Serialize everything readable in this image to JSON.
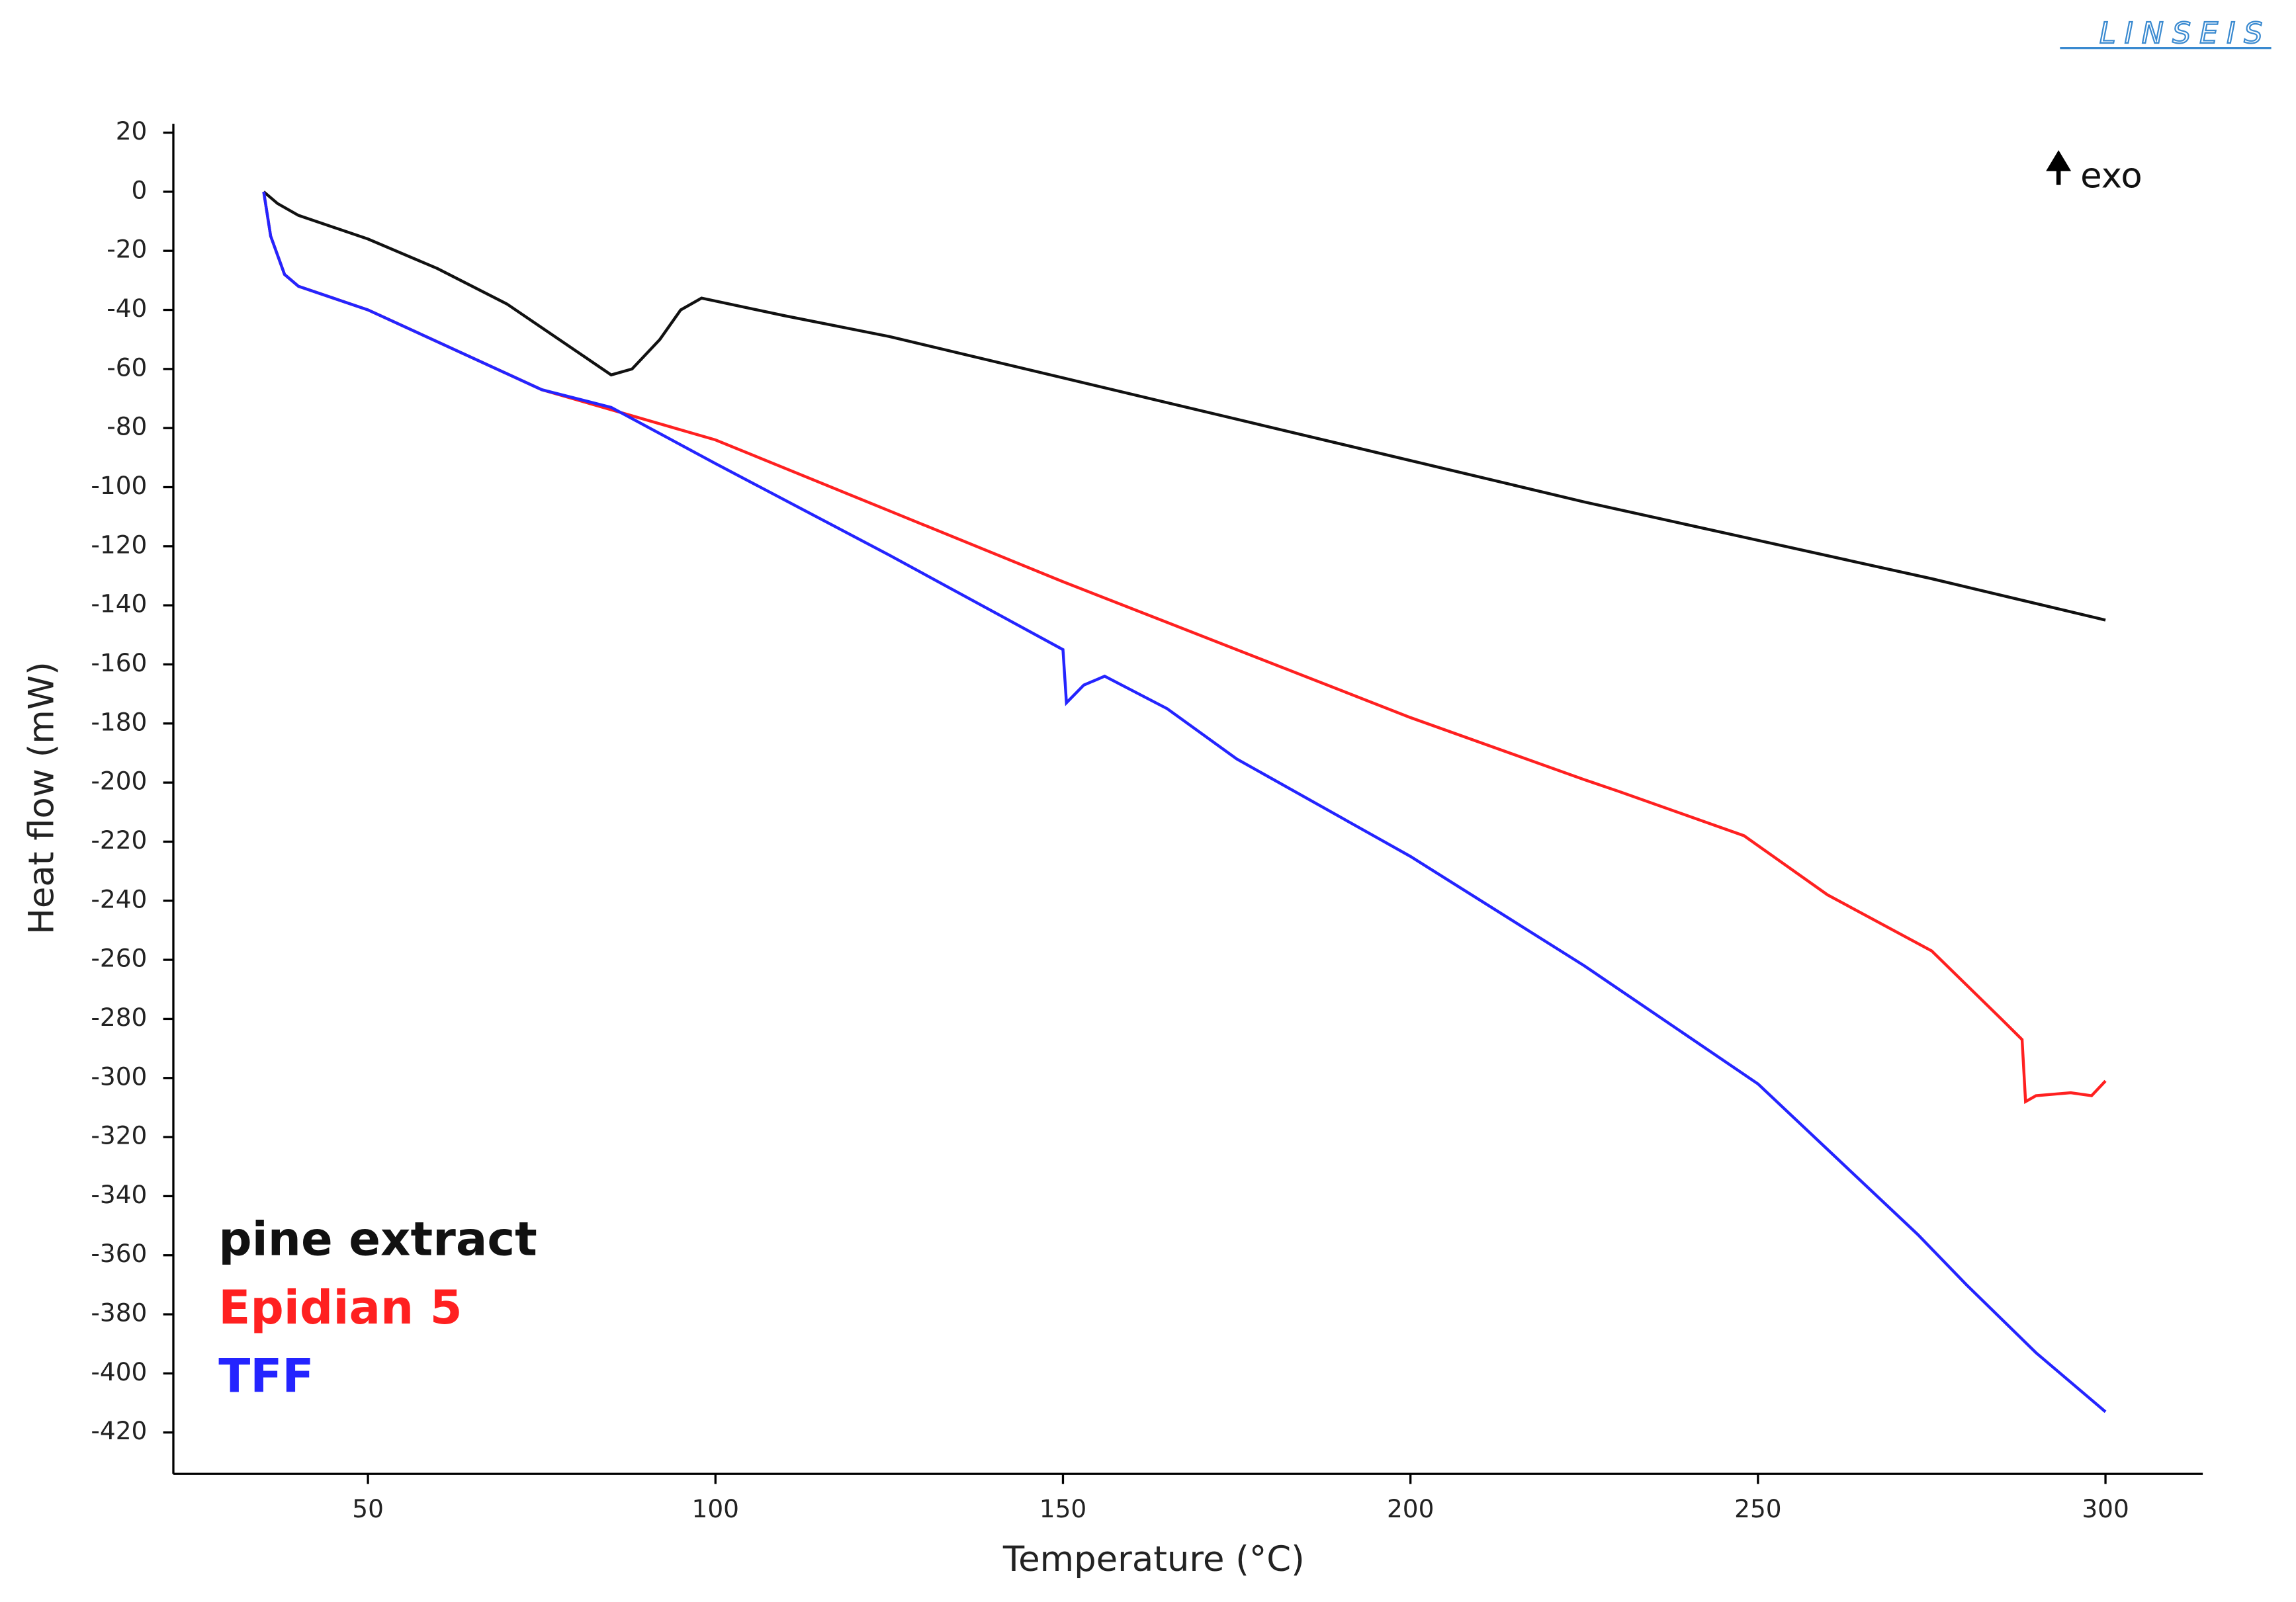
{
  "chart_data": {
    "type": "line",
    "x_label": "Temperature (°C)",
    "y_label": "Heat flow (mW)",
    "annotation": "exo",
    "logo": "LINSEIS",
    "xlim": [
      22,
      314
    ],
    "ylim": [
      -434,
      23
    ],
    "xticks": [
      50,
      100,
      150,
      200,
      250,
      300
    ],
    "yticks": [
      20,
      0,
      -20,
      -40,
      -60,
      -80,
      -100,
      -120,
      -140,
      -160,
      -180,
      -200,
      -220,
      -240,
      -260,
      -280,
      -300,
      -320,
      -340,
      -360,
      -380,
      -400,
      -420
    ],
    "series": [
      {
        "name": "pine extract",
        "color": "#111111",
        "x": [
          35,
          37,
          40,
          50,
          60,
          70,
          80,
          85,
          88,
          92,
          95,
          98,
          100,
          110,
          125,
          150,
          175,
          200,
          225,
          250,
          275,
          300
        ],
        "values": [
          0,
          -4,
          -8,
          -16,
          -26,
          -38,
          -54,
          -62,
          -60,
          -50,
          -40,
          -36,
          -37,
          -42,
          -49,
          -63,
          -77,
          -91,
          -105,
          -118,
          -131,
          -145
        ]
      },
      {
        "name": "Epidian 5",
        "color": "#ff2020",
        "x": [
          35,
          36,
          38,
          40,
          50,
          75,
          100,
          125,
          150,
          175,
          200,
          225,
          230,
          248,
          260,
          275,
          285,
          288,
          288.5,
          290,
          295,
          298,
          300
        ],
        "values": [
          0,
          -15,
          -28,
          -32,
          -40,
          -67,
          -84,
          -108,
          -132,
          -155,
          -178,
          -199,
          -203,
          -218,
          -238,
          -257,
          -280,
          -287,
          -308,
          -306,
          -305,
          -306,
          -301
        ]
      },
      {
        "name": "TFF",
        "color": "#2424ff",
        "x": [
          35,
          36,
          38,
          40,
          50,
          75,
          85,
          100,
          125,
          150,
          150.5,
          153,
          156,
          165,
          175,
          200,
          225,
          250,
          273,
          280,
          290,
          300
        ],
        "values": [
          0,
          -15,
          -28,
          -32,
          -40,
          -67,
          -73,
          -92,
          -123,
          -155,
          -173,
          -167,
          -164,
          -175,
          -192,
          -225,
          -262,
          -302,
          -353,
          -370,
          -393,
          -413
        ]
      }
    ]
  }
}
